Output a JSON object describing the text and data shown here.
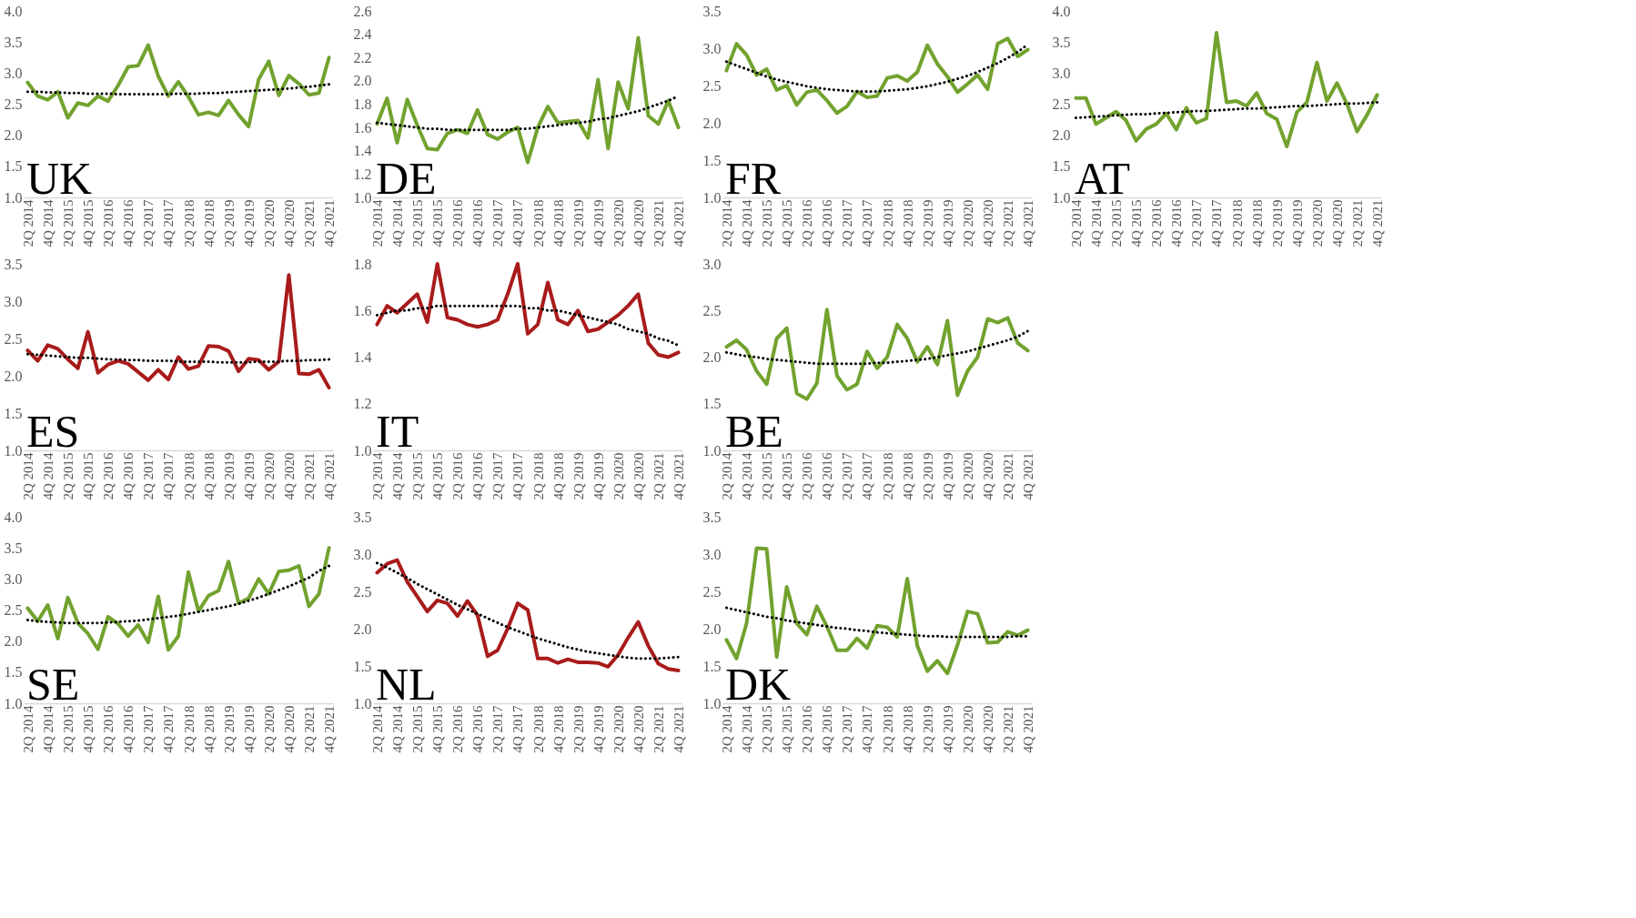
{
  "chart_data": [
    {
      "type": "line",
      "title": "UK",
      "categories": [
        "2Q 2014",
        null,
        "4Q 2014",
        null,
        "2Q 2015",
        null,
        "4Q 2015",
        null,
        "2Q 2016",
        null,
        "4Q 2016",
        null,
        "2Q 2017",
        null,
        "4Q 2017",
        null,
        "2Q 2018",
        null,
        "4Q 2018",
        null,
        "2Q 2019",
        null,
        "4Q 2019",
        null,
        "2Q 2020",
        null,
        "4Q 2020",
        null,
        "2Q 2021",
        null,
        "4Q 2021"
      ],
      "ylim": [
        1,
        4
      ],
      "yticks": [
        {
          "value": 1,
          "label": "1.0"
        },
        {
          "value": 1.5,
          "label": "1.5"
        },
        {
          "value": 2,
          "label": "2.0"
        },
        {
          "value": 2.5,
          "label": "2.5"
        },
        {
          "value": 3,
          "label": "3.0"
        },
        {
          "value": 3.5,
          "label": "3.5"
        },
        {
          "value": 4,
          "label": "4.0"
        }
      ],
      "series": [
        {
          "color": "#72a22e",
          "line_style": "solid",
          "values": [
            2.85,
            2.63,
            2.57,
            2.7,
            2.28,
            2.52,
            2.48,
            2.63,
            2.55,
            2.8,
            3.1,
            3.12,
            3.45,
            2.95,
            2.63,
            2.86,
            2.62,
            2.33,
            2.37,
            2.32,
            2.56,
            2.33,
            2.14,
            2.9,
            3.19,
            2.64,
            2.96,
            2.83,
            2.65,
            2.68,
            3.25
          ]
        },
        {
          "type": "line",
          "color": "#000000",
          "line_style": "dotted",
          "values": [
            2.7,
            2.7,
            2.69,
            2.69,
            2.68,
            2.68,
            2.67,
            2.67,
            2.67,
            2.66,
            2.66,
            2.66,
            2.66,
            2.66,
            2.66,
            2.67,
            2.67,
            2.67,
            2.68,
            2.68,
            2.69,
            2.7,
            2.71,
            2.72,
            2.73,
            2.74,
            2.75,
            2.77,
            2.78,
            2.8,
            2.82
          ]
        }
      ]
    },
    {
      "type": "line",
      "title": "DE",
      "categories": [
        "2Q 2014",
        null,
        "4Q 2014",
        null,
        "2Q 2015",
        null,
        "4Q 2015",
        null,
        "2Q 2016",
        null,
        "4Q 2016",
        null,
        "2Q 2017",
        null,
        "4Q 2017",
        null,
        "2Q 2018",
        null,
        "4Q 2018",
        null,
        "2Q 2019",
        null,
        "4Q 2019",
        null,
        "2Q 2020",
        null,
        "4Q 2020",
        null,
        "2Q 2021",
        null,
        "4Q 2021"
      ],
      "ylim": [
        1,
        2.6
      ],
      "yticks": [
        {
          "value": 1,
          "label": "1.0"
        },
        {
          "value": 1.2,
          "label": "1.2"
        },
        {
          "value": 1.4,
          "label": "1.4"
        },
        {
          "value": 1.6,
          "label": "1.6"
        },
        {
          "value": 1.8,
          "label": "1.8"
        },
        {
          "value": 2,
          "label": "2.0"
        },
        {
          "value": 2.2,
          "label": "2.2"
        },
        {
          "value": 2.4,
          "label": "2.4"
        },
        {
          "value": 2.6,
          "label": "2.6"
        }
      ],
      "series": [
        {
          "color": "#72a22e",
          "line_style": "solid",
          "values": [
            1.63,
            1.85,
            1.47,
            1.84,
            1.62,
            1.42,
            1.41,
            1.55,
            1.58,
            1.55,
            1.75,
            1.54,
            1.5,
            1.56,
            1.6,
            1.3,
            1.6,
            1.78,
            1.64,
            1.65,
            1.66,
            1.51,
            2.01,
            1.42,
            1.99,
            1.76,
            2.37,
            1.7,
            1.63,
            1.83,
            1.6
          ]
        },
        {
          "type": "line",
          "color": "#000000",
          "line_style": "dotted",
          "values": [
            1.64,
            1.63,
            1.62,
            1.61,
            1.6,
            1.59,
            1.59,
            1.58,
            1.58,
            1.58,
            1.58,
            1.58,
            1.58,
            1.58,
            1.59,
            1.59,
            1.6,
            1.61,
            1.62,
            1.63,
            1.64,
            1.65,
            1.67,
            1.68,
            1.7,
            1.72,
            1.74,
            1.77,
            1.8,
            1.83,
            1.87
          ]
        }
      ]
    },
    {
      "type": "line",
      "title": "FR",
      "categories": [
        "2Q 2014",
        null,
        "4Q 2014",
        null,
        "2Q 2015",
        null,
        "4Q 2015",
        null,
        "2Q 2016",
        null,
        "4Q 2016",
        null,
        "2Q 2017",
        null,
        "4Q 2017",
        null,
        "2Q 2018",
        null,
        "4Q 2018",
        null,
        "2Q 2019",
        null,
        "4Q 2019",
        null,
        "2Q 2020",
        null,
        "4Q 2020",
        null,
        "2Q 2021",
        null,
        "4Q 2021"
      ],
      "ylim": [
        1,
        3.5
      ],
      "yticks": [
        {
          "value": 1,
          "label": "1.0"
        },
        {
          "value": 1.5,
          "label": "1.5"
        },
        {
          "value": 2,
          "label": "2.0"
        },
        {
          "value": 2.5,
          "label": "2.5"
        },
        {
          "value": 3,
          "label": "3.0"
        },
        {
          "value": 3.5,
          "label": "3.5"
        }
      ],
      "series": [
        {
          "color": "#72a22e",
          "line_style": "solid",
          "values": [
            2.7,
            3.06,
            2.91,
            2.64,
            2.72,
            2.44,
            2.5,
            2.24,
            2.41,
            2.44,
            2.3,
            2.13,
            2.22,
            2.42,
            2.34,
            2.36,
            2.6,
            2.63,
            2.56,
            2.68,
            3.04,
            2.79,
            2.62,
            2.41,
            2.52,
            2.64,
            2.45,
            3.06,
            3.13,
            2.89,
            2.98
          ]
        },
        {
          "type": "line",
          "color": "#000000",
          "line_style": "dotted",
          "values": [
            2.82,
            2.77,
            2.72,
            2.67,
            2.62,
            2.58,
            2.55,
            2.52,
            2.49,
            2.47,
            2.45,
            2.44,
            2.43,
            2.42,
            2.42,
            2.42,
            2.43,
            2.44,
            2.45,
            2.47,
            2.49,
            2.52,
            2.55,
            2.59,
            2.63,
            2.68,
            2.74,
            2.8,
            2.87,
            2.95,
            3.05
          ]
        }
      ]
    },
    {
      "type": "line",
      "title": "AT",
      "categories": [
        "2Q 2014",
        null,
        "4Q 2014",
        null,
        "2Q 2015",
        null,
        "4Q 2015",
        null,
        "2Q 2016",
        null,
        "4Q 2016",
        null,
        "2Q 2017",
        null,
        "4Q 2017",
        null,
        "2Q 2018",
        null,
        "4Q 2018",
        null,
        "2Q 2019",
        null,
        "4Q 2019",
        null,
        "2Q 2020",
        null,
        "4Q 2020",
        null,
        "2Q 2021",
        null,
        "4Q 2021"
      ],
      "ylim": [
        1,
        4
      ],
      "yticks": [
        {
          "value": 1,
          "label": "1.0"
        },
        {
          "value": 1.5,
          "label": "1.5"
        },
        {
          "value": 2,
          "label": "2.0"
        },
        {
          "value": 2.5,
          "label": "2.5"
        },
        {
          "value": 3,
          "label": "3.0"
        },
        {
          "value": 3.5,
          "label": "3.5"
        },
        {
          "value": 4,
          "label": "4.0"
        }
      ],
      "series": [
        {
          "color": "#72a22e",
          "line_style": "solid",
          "values": [
            2.6,
            2.6,
            2.18,
            2.28,
            2.38,
            2.24,
            1.91,
            2.1,
            2.18,
            2.35,
            2.09,
            2.44,
            2.2,
            2.27,
            3.65,
            2.53,
            2.55,
            2.47,
            2.68,
            2.35,
            2.26,
            1.82,
            2.37,
            2.53,
            3.17,
            2.55,
            2.84,
            2.5,
            2.06,
            2.33,
            2.65
          ]
        },
        {
          "type": "line",
          "color": "#000000",
          "line_style": "dotted",
          "values": [
            2.28,
            2.29,
            2.3,
            2.31,
            2.32,
            2.33,
            2.34,
            2.34,
            2.35,
            2.36,
            2.37,
            2.38,
            2.39,
            2.39,
            2.4,
            2.41,
            2.42,
            2.43,
            2.43,
            2.44,
            2.45,
            2.46,
            2.47,
            2.47,
            2.48,
            2.49,
            2.5,
            2.51,
            2.51,
            2.52,
            2.53
          ]
        }
      ]
    },
    {
      "type": "line",
      "title": "ES",
      "categories": [
        "2Q 2014",
        null,
        "4Q 2014",
        null,
        "2Q 2015",
        null,
        "4Q 2015",
        null,
        "2Q 2016",
        null,
        "4Q 2016",
        null,
        "2Q 2017",
        null,
        "4Q 2017",
        null,
        "2Q 2018",
        null,
        "4Q 2018",
        null,
        "2Q 2019",
        null,
        "4Q 2019",
        null,
        "2Q 2020",
        null,
        "4Q 2020",
        null,
        "2Q 2021",
        null,
        "4Q 2021"
      ],
      "ylim": [
        1,
        3.5
      ],
      "yticks": [
        {
          "value": 1,
          "label": "1.0"
        },
        {
          "value": 1.5,
          "label": "1.5"
        },
        {
          "value": 2,
          "label": "2.0"
        },
        {
          "value": 2.5,
          "label": "2.5"
        },
        {
          "value": 3,
          "label": "3.0"
        },
        {
          "value": 3.5,
          "label": "3.5"
        }
      ],
      "series": [
        {
          "color": "#a91b1b",
          "line_style": "solid",
          "values": [
            2.34,
            2.2,
            2.41,
            2.36,
            2.22,
            2.1,
            2.59,
            2.04,
            2.15,
            2.2,
            2.16,
            2.05,
            1.94,
            2.08,
            1.95,
            2.25,
            2.09,
            2.13,
            2.4,
            2.39,
            2.33,
            2.06,
            2.23,
            2.21,
            2.08,
            2.19,
            3.35,
            2.03,
            2.02,
            2.08,
            1.84
          ]
        },
        {
          "type": "line",
          "color": "#000000",
          "line_style": "dotted",
          "values": [
            2.29,
            2.28,
            2.27,
            2.26,
            2.25,
            2.24,
            2.24,
            2.23,
            2.22,
            2.22,
            2.21,
            2.21,
            2.2,
            2.2,
            2.2,
            2.19,
            2.19,
            2.19,
            2.19,
            2.18,
            2.18,
            2.18,
            2.18,
            2.19,
            2.19,
            2.19,
            2.2,
            2.2,
            2.21,
            2.21,
            2.22
          ]
        }
      ]
    },
    {
      "type": "line",
      "title": "IT",
      "categories": [
        "2Q 2014",
        null,
        "4Q 2014",
        null,
        "2Q 2015",
        null,
        "4Q 2015",
        null,
        "2Q 2016",
        null,
        "4Q 2016",
        null,
        "2Q 2017",
        null,
        "4Q 2017",
        null,
        "2Q 2018",
        null,
        "4Q 2018",
        null,
        "2Q 2019",
        null,
        "4Q 2019",
        null,
        "2Q 2020",
        null,
        "4Q 2020",
        null,
        "2Q 2021",
        null,
        "4Q 2021"
      ],
      "ylim": [
        1,
        1.8
      ],
      "yticks": [
        {
          "value": 1,
          "label": "1.0"
        },
        {
          "value": 1.2,
          "label": "1.2"
        },
        {
          "value": 1.4,
          "label": "1.4"
        },
        {
          "value": 1.6,
          "label": "1.6"
        },
        {
          "value": 1.8,
          "label": "1.8"
        }
      ],
      "series": [
        {
          "color": "#a91b1b",
          "line_style": "solid",
          "values": [
            1.54,
            1.62,
            1.59,
            1.63,
            1.67,
            1.55,
            1.8,
            1.57,
            1.56,
            1.54,
            1.53,
            1.54,
            1.56,
            1.67,
            1.8,
            1.5,
            1.54,
            1.72,
            1.56,
            1.54,
            1.6,
            1.51,
            1.52,
            1.55,
            1.58,
            1.62,
            1.67,
            1.46,
            1.41,
            1.4,
            1.42
          ]
        },
        {
          "type": "line",
          "color": "#000000",
          "line_style": "dotted",
          "values": [
            1.58,
            1.59,
            1.6,
            1.6,
            1.61,
            1.61,
            1.62,
            1.62,
            1.62,
            1.62,
            1.62,
            1.62,
            1.62,
            1.62,
            1.62,
            1.61,
            1.61,
            1.6,
            1.6,
            1.59,
            1.58,
            1.57,
            1.56,
            1.55,
            1.54,
            1.52,
            1.51,
            1.5,
            1.48,
            1.47,
            1.45
          ]
        }
      ]
    },
    {
      "type": "line",
      "title": "BE",
      "categories": [
        "2Q 2014",
        null,
        "4Q 2014",
        null,
        "2Q 2015",
        null,
        "4Q 2015",
        null,
        "2Q 2016",
        null,
        "4Q 2016",
        null,
        "2Q 2017",
        null,
        "4Q 2017",
        null,
        "2Q 2018",
        null,
        "4Q 2018",
        null,
        "2Q 2019",
        null,
        "4Q 2019",
        null,
        "2Q 2020",
        null,
        "4Q 2020",
        null,
        "2Q 2021",
        null,
        "4Q 2021"
      ],
      "ylim": [
        1,
        3
      ],
      "yticks": [
        {
          "value": 1,
          "label": "1.0"
        },
        {
          "value": 1.5,
          "label": "1.5"
        },
        {
          "value": 2,
          "label": "2.0"
        },
        {
          "value": 2.5,
          "label": "2.5"
        },
        {
          "value": 3,
          "label": "3.0"
        }
      ],
      "series": [
        {
          "color": "#72a22e",
          "line_style": "solid",
          "values": [
            2.11,
            2.18,
            2.08,
            1.85,
            1.71,
            2.2,
            2.31,
            1.61,
            1.55,
            1.72,
            2.51,
            1.8,
            1.65,
            1.71,
            2.06,
            1.88,
            2.0,
            2.35,
            2.2,
            1.95,
            2.11,
            1.92,
            2.39,
            1.59,
            1.85,
            2.0,
            2.41,
            2.37,
            2.42,
            2.15,
            2.07
          ]
        },
        {
          "type": "line",
          "color": "#000000",
          "line_style": "dotted",
          "values": [
            2.05,
            2.03,
            2.01,
            2.0,
            1.98,
            1.97,
            1.96,
            1.95,
            1.94,
            1.93,
            1.93,
            1.93,
            1.93,
            1.93,
            1.93,
            1.94,
            1.94,
            1.95,
            1.96,
            1.97,
            1.98,
            2.0,
            2.02,
            2.04,
            2.06,
            2.09,
            2.12,
            2.15,
            2.18,
            2.22,
            2.28
          ]
        }
      ]
    },
    {
      "type": "line",
      "title": "SE",
      "categories": [
        "2Q 2014",
        null,
        "4Q 2014",
        null,
        "2Q 2015",
        null,
        "4Q 2015",
        null,
        "2Q 2016",
        null,
        "4Q 2016",
        null,
        "2Q 2017",
        null,
        "4Q 2017",
        null,
        "2Q 2018",
        null,
        "4Q 2018",
        null,
        "2Q 2019",
        null,
        "4Q 2019",
        null,
        "2Q 2020",
        null,
        "4Q 2020",
        null,
        "2Q 2021",
        null,
        "4Q 2021"
      ],
      "ylim": [
        1,
        4
      ],
      "yticks": [
        {
          "value": 1,
          "label": "1.0"
        },
        {
          "value": 1.5,
          "label": "1.5"
        },
        {
          "value": 2,
          "label": "2.0"
        },
        {
          "value": 2.5,
          "label": "2.5"
        },
        {
          "value": 3,
          "label": "3.0"
        },
        {
          "value": 3.5,
          "label": "3.5"
        },
        {
          "value": 4,
          "label": "4.0"
        }
      ],
      "series": [
        {
          "color": "#72a22e",
          "line_style": "solid",
          "values": [
            2.53,
            2.32,
            2.58,
            2.04,
            2.7,
            2.29,
            2.12,
            1.87,
            2.39,
            2.28,
            2.08,
            2.26,
            1.98,
            2.72,
            1.86,
            2.08,
            3.11,
            2.48,
            2.73,
            2.81,
            3.28,
            2.61,
            2.69,
            3.0,
            2.76,
            3.12,
            3.14,
            3.21,
            2.56,
            2.76,
            3.5
          ]
        },
        {
          "type": "line",
          "color": "#000000",
          "line_style": "dotted",
          "values": [
            2.34,
            2.32,
            2.31,
            2.3,
            2.29,
            2.29,
            2.29,
            2.29,
            2.3,
            2.31,
            2.32,
            2.33,
            2.35,
            2.37,
            2.39,
            2.41,
            2.44,
            2.47,
            2.5,
            2.53,
            2.56,
            2.6,
            2.65,
            2.7,
            2.76,
            2.82,
            2.88,
            2.95,
            3.02,
            3.13,
            3.21
          ]
        }
      ]
    },
    {
      "type": "line",
      "title": "NL",
      "categories": [
        "2Q 2014",
        null,
        "4Q 2014",
        null,
        "2Q 2015",
        null,
        "4Q 2015",
        null,
        "2Q 2016",
        null,
        "4Q 2016",
        null,
        "2Q 2017",
        null,
        "4Q 2017",
        null,
        "2Q 2018",
        null,
        "4Q 2018",
        null,
        "2Q 2019",
        null,
        "4Q 2019",
        null,
        "2Q 2020",
        null,
        "4Q 2020",
        null,
        "2Q 2021",
        null,
        "4Q 2021"
      ],
      "ylim": [
        1,
        3.5
      ],
      "yticks": [
        {
          "value": 1,
          "label": "1.0"
        },
        {
          "value": 1.5,
          "label": "1.5"
        },
        {
          "value": 2,
          "label": "2.0"
        },
        {
          "value": 2.5,
          "label": "2.5"
        },
        {
          "value": 3,
          "label": "3.0"
        },
        {
          "value": 3.5,
          "label": "3.5"
        }
      ],
      "series": [
        {
          "color": "#a91b1b",
          "line_style": "solid",
          "values": [
            2.75,
            2.87,
            2.92,
            2.63,
            2.43,
            2.23,
            2.38,
            2.34,
            2.17,
            2.37,
            2.18,
            1.63,
            1.71,
            2.0,
            2.34,
            2.25,
            1.6,
            1.6,
            1.54,
            1.59,
            1.55,
            1.55,
            1.54,
            1.49,
            1.65,
            1.88,
            2.09,
            1.77,
            1.53,
            1.46,
            1.44
          ]
        },
        {
          "type": "line",
          "color": "#000000",
          "line_style": "dotted",
          "values": [
            2.88,
            2.82,
            2.75,
            2.68,
            2.6,
            2.53,
            2.46,
            2.39,
            2.32,
            2.26,
            2.2,
            2.14,
            2.08,
            2.02,
            1.97,
            1.92,
            1.87,
            1.83,
            1.79,
            1.75,
            1.72,
            1.69,
            1.67,
            1.65,
            1.63,
            1.61,
            1.6,
            1.6,
            1.6,
            1.61,
            1.62
          ]
        }
      ]
    },
    {
      "type": "line",
      "title": "DK",
      "categories": [
        "2Q 2014",
        null,
        "4Q 2014",
        null,
        "2Q 2015",
        null,
        "4Q 2015",
        null,
        "2Q 2016",
        null,
        "4Q 2016",
        null,
        "2Q 2017",
        null,
        "4Q 2017",
        null,
        "2Q 2018",
        null,
        "4Q 2018",
        null,
        "2Q 2019",
        null,
        "4Q 2019",
        null,
        "2Q 2020",
        null,
        "4Q 2020",
        null,
        "2Q 2021",
        null,
        "4Q 2021"
      ],
      "ylim": [
        1,
        3.5
      ],
      "yticks": [
        {
          "value": 1,
          "label": "1.0"
        },
        {
          "value": 1.5,
          "label": "1.5"
        },
        {
          "value": 2,
          "label": "2.0"
        },
        {
          "value": 2.5,
          "label": "2.5"
        },
        {
          "value": 3,
          "label": "3.0"
        },
        {
          "value": 3.5,
          "label": "3.5"
        }
      ],
      "series": [
        {
          "color": "#72a22e",
          "line_style": "solid",
          "values": [
            1.85,
            1.6,
            2.07,
            3.08,
            3.07,
            1.62,
            2.56,
            2.07,
            1.92,
            2.3,
            2.03,
            1.71,
            1.71,
            1.87,
            1.74,
            2.04,
            2.02,
            1.89,
            2.67,
            1.77,
            1.43,
            1.57,
            1.4,
            1.78,
            2.23,
            2.2,
            1.81,
            1.82,
            1.96,
            1.91,
            1.98
          ]
        },
        {
          "type": "line",
          "color": "#000000",
          "line_style": "dotted",
          "values": [
            2.28,
            2.25,
            2.22,
            2.19,
            2.16,
            2.14,
            2.11,
            2.09,
            2.07,
            2.05,
            2.03,
            2.01,
            2.0,
            1.98,
            1.97,
            1.95,
            1.94,
            1.93,
            1.92,
            1.91,
            1.9,
            1.9,
            1.89,
            1.89,
            1.89,
            1.89,
            1.89,
            1.89,
            1.89,
            1.9,
            1.9
          ]
        }
      ]
    }
  ]
}
